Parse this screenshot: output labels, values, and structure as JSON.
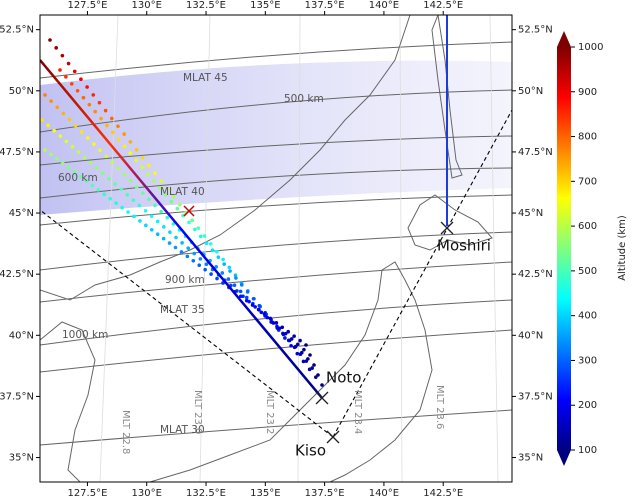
{
  "chart_data": {
    "type": "map",
    "xticks": [
      {
        "value": 127.5,
        "label": "127.5°E"
      },
      {
        "value": 130,
        "label": "130°E"
      },
      {
        "value": 132.5,
        "label": "132.5°E"
      },
      {
        "value": 135,
        "label": "135°E"
      },
      {
        "value": 137.5,
        "label": "137.5°E"
      },
      {
        "value": 140,
        "label": "140°E"
      },
      {
        "value": 142.5,
        "label": "142.5°E"
      }
    ],
    "yticks": [
      {
        "value": 52.5,
        "label": "52.5°N"
      },
      {
        "value": 50,
        "label": "50°N"
      },
      {
        "value": 47.5,
        "label": "47.5°N"
      },
      {
        "value": 45,
        "label": "45°N"
      },
      {
        "value": 42.5,
        "label": "42.5°N"
      },
      {
        "value": 40,
        "label": "40°N"
      },
      {
        "value": 37.5,
        "label": "37.5°N"
      },
      {
        "value": 35,
        "label": "35°N"
      }
    ],
    "xlim": [
      125.5,
      145.4
    ],
    "ylim": [
      34,
      53.1
    ],
    "contour_labels": [
      "MLAT 45",
      "500 km",
      "600 km",
      "MLAT 40",
      "900 km",
      "MLAT 35",
      "1000 km",
      "MLAT 30"
    ],
    "mlt_labels": [
      "MLT 22.8",
      "MLT 23.0",
      "MLT 23.2",
      "MLT 23.4",
      "MLT 23.6"
    ],
    "stations": [
      "Moshiri",
      "Noto",
      "Kiso"
    ],
    "colorbar": {
      "label": "Altitude (km)",
      "lim": [
        100,
        1000
      ],
      "ticks": [
        100,
        200,
        300,
        400,
        500,
        600,
        700,
        800,
        900,
        1000
      ],
      "colors": [
        "#00007f",
        "#0000ff",
        "#007fff",
        "#00ffff",
        "#7fff7f",
        "#ffff00",
        "#ff7f00",
        "#ff0000",
        "#7f0000"
      ]
    }
  }
}
